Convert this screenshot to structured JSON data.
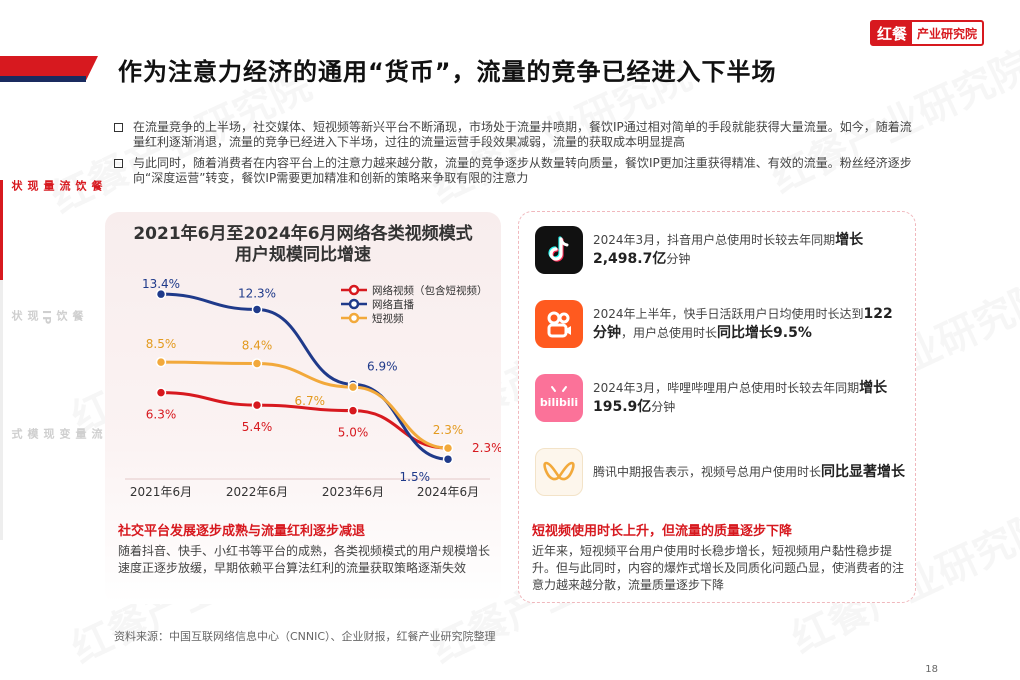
{
  "logo": {
    "brand": "红餐",
    "sub": "产业研究院"
  },
  "page_title": "作为注意力经济的通用“货币”，流量的竞争已经进入下半场",
  "watermark_text": "红餐产业研究院",
  "sidenav": [
    {
      "label": "餐饮流量现状",
      "active": true
    },
    {
      "label": "餐饮IP现状",
      "active": false
    },
    {
      "label": "流量变现模式",
      "active": false
    }
  ],
  "bullets": [
    "在流量竞争的上半场，社交媒体、短视频等新兴平台不断涌现，市场处于流量井喷期，餐饮IP通过相对简单的手段就能获得大量流量。如今，随着流量红利逐渐消退，流量的竞争已经进入下半场，过往的流量运营手段效果减弱，流量的获取成本明显提高",
    "与此同时，随着消费者在内容平台上的注意力越来越分散，流量的竞争逐步从数量转向质量，餐饮IP更加注重获得精准、有效的流量。粉丝经济逐步向“深度运营”转变，餐饮IP需要更加精准和创新的策略来争取有限的注意力"
  ],
  "chart_data": {
    "type": "line",
    "title_line1": "2021年6月至2024年6月网络各类视频模式",
    "title_line2": "用户规模同比增速",
    "categories": [
      "2021年6月",
      "2022年6月",
      "2023年6月",
      "2024年6月"
    ],
    "series": [
      {
        "name": "网络视频（包含短视频）",
        "color": "#d7191f",
        "values": [
          6.3,
          5.4,
          5.0,
          2.3
        ],
        "labels": [
          "6.3%",
          "5.4%",
          "5.0%",
          "2.3%"
        ]
      },
      {
        "name": "网络直播",
        "color": "#1f3a8a",
        "values": [
          13.4,
          12.3,
          6.9,
          1.5
        ],
        "labels": [
          "13.4%",
          "12.3%",
          "6.9%",
          "1.5%"
        ]
      },
      {
        "name": "短视频",
        "color": "#f2a93b",
        "values": [
          8.5,
          8.4,
          6.7,
          2.3
        ],
        "labels": [
          "8.5%",
          "8.4%",
          "6.7%",
          "2.3%"
        ]
      }
    ],
    "ylim": [
      0,
      15
    ],
    "grid": false,
    "legend": "top-right"
  },
  "left_summary": {
    "title": "社交平台发展逐步成熟与流量红利逐步减退",
    "text": "随着抖音、快手、小红书等平台的成熟，各类视频模式的用户规模增长速度正逐步放缓，早期依赖平台算法红利的流量获取策略逐渐失效"
  },
  "apps": [
    {
      "icon": "douyin-icon",
      "color": "#111111",
      "text": "2024年3月，抖音用户总使用时长较去年同期",
      "bold": "增长2,498.7亿",
      "suffix": "分钟"
    },
    {
      "icon": "kuaishou-icon",
      "color": "#ff5a1f",
      "text": "2024年上半年，快手日活跃用户日均使用时长达到",
      "bold": "122分钟",
      "suffix": "，用户总使用时长",
      "bold2": "同比增长9.5%"
    },
    {
      "icon": "bilibili-icon",
      "color": "#fb7299",
      "text": "2024年3月，哔哩哔哩用户总使用时长较去年同期",
      "bold": "增长195.9亿",
      "suffix": "分钟"
    },
    {
      "icon": "channels-icon",
      "color": "#f6a623",
      "text": "腾讯中期报告表示，视频号总用户使用时长",
      "bold": "同比显著增长",
      "suffix": ""
    }
  ],
  "right_summary": {
    "title": "短视频使用时长上升，但流量的质量逐步下降",
    "text": "近年来，短视频平台用户使用时长稳步增长，短视频用户黏性稳步提升。但与此同时，内容的爆炸式增长及同质化问题凸显，使消费者的注意力越来越分散，流量质量逐步下降"
  },
  "source": "资料来源：中国互联网络信息中心（CNNIC）、企业财报，红餐产业研究院整理",
  "page_number": "18"
}
